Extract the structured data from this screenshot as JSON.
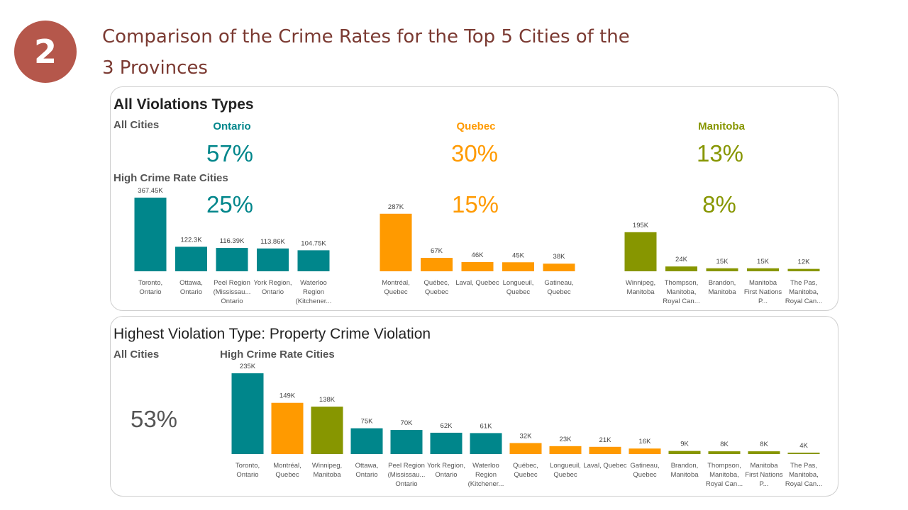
{
  "slide": {
    "number": "2",
    "title": "Comparison of the Crime Rates for the Top 5 Cities of the 3 Provinces"
  },
  "colors": {
    "ontario": "#00868b",
    "quebec": "#ff9a00",
    "manitoba": "#879600",
    "gray": "#555555",
    "badge": "#b5574b"
  },
  "panel1": {
    "heading": "All Violations Types",
    "all_cities_label": "All Cities",
    "high_label": "High Crime Rate Cities",
    "provinces": [
      {
        "name": "Ontario",
        "all_pct": "57%",
        "high_pct": "25%",
        "color": "#00868b"
      },
      {
        "name": "Quebec",
        "all_pct": "30%",
        "high_pct": "15%",
        "color": "#ff9a00"
      },
      {
        "name": "Manitoba",
        "all_pct": "13%",
        "high_pct": "8%",
        "color": "#879600"
      }
    ]
  },
  "panel2": {
    "heading": "Highest Violation Type: Property Crime Violation",
    "all_cities_label": "All Cities",
    "high_label": "High Crime Rate Cities",
    "all_pct": "53%"
  },
  "chart_data": [
    {
      "type": "bar",
      "province": "Ontario",
      "categories": [
        "Toronto, Ontario",
        "Ottawa, Ontario",
        "Peel Region (Mississau... Ontario",
        "York Region, Ontario",
        "Waterloo Region (Kitchener..."
      ],
      "values": [
        367450,
        122300,
        116390,
        113860,
        104750
      ],
      "labels": [
        "367.45K",
        "122.3K",
        "116.39K",
        "113.86K",
        "104.75K"
      ]
    },
    {
      "type": "bar",
      "province": "Quebec",
      "categories": [
        "Montréal, Quebec",
        "Québec, Quebec",
        "Laval, Quebec",
        "Longueuil, Quebec",
        "Gatineau, Quebec"
      ],
      "values": [
        287000,
        67000,
        46000,
        45000,
        38000
      ],
      "labels": [
        "287K",
        "67K",
        "46K",
        "45K",
        "38K"
      ]
    },
    {
      "type": "bar",
      "province": "Manitoba",
      "categories": [
        "Winnipeg, Manitoba",
        "Thompson, Manitoba, Royal Can...",
        "Brandon, Manitoba",
        "Manitoba First Nations P...",
        "The Pas, Manitoba, Royal Can..."
      ],
      "values": [
        195000,
        24000,
        15000,
        15000,
        12000
      ],
      "labels": [
        "195K",
        "24K",
        "15K",
        "15K",
        "12K"
      ]
    },
    {
      "type": "bar",
      "title": "Property Crime Violation",
      "categories": [
        "Toronto, Ontario",
        "Montréal, Quebec",
        "Winnipeg, Manitoba",
        "Ottawa, Ontario",
        "Peel Region (Mississau... Ontario",
        "York Region, Ontario",
        "Waterloo Region (Kitchener...",
        "Québec, Quebec",
        "Longueuil, Quebec",
        "Laval, Quebec",
        "Gatineau, Quebec",
        "Brandon, Manitoba",
        "Thompson, Manitoba, Royal Can...",
        "Manitoba First Nations P...",
        "The Pas, Manitoba, Royal Can..."
      ],
      "values": [
        235000,
        149000,
        138000,
        75000,
        70000,
        62000,
        61000,
        32000,
        23000,
        21000,
        16000,
        9000,
        8000,
        8000,
        4000
      ],
      "labels": [
        "235K",
        "149K",
        "138K",
        "75K",
        "70K",
        "62K",
        "61K",
        "32K",
        "23K",
        "21K",
        "16K",
        "9K",
        "8K",
        "8K",
        "4K"
      ],
      "provinces": [
        "Ontario",
        "Quebec",
        "Manitoba",
        "Ontario",
        "Ontario",
        "Ontario",
        "Ontario",
        "Quebec",
        "Quebec",
        "Quebec",
        "Quebec",
        "Manitoba",
        "Manitoba",
        "Manitoba",
        "Manitoba"
      ]
    }
  ]
}
